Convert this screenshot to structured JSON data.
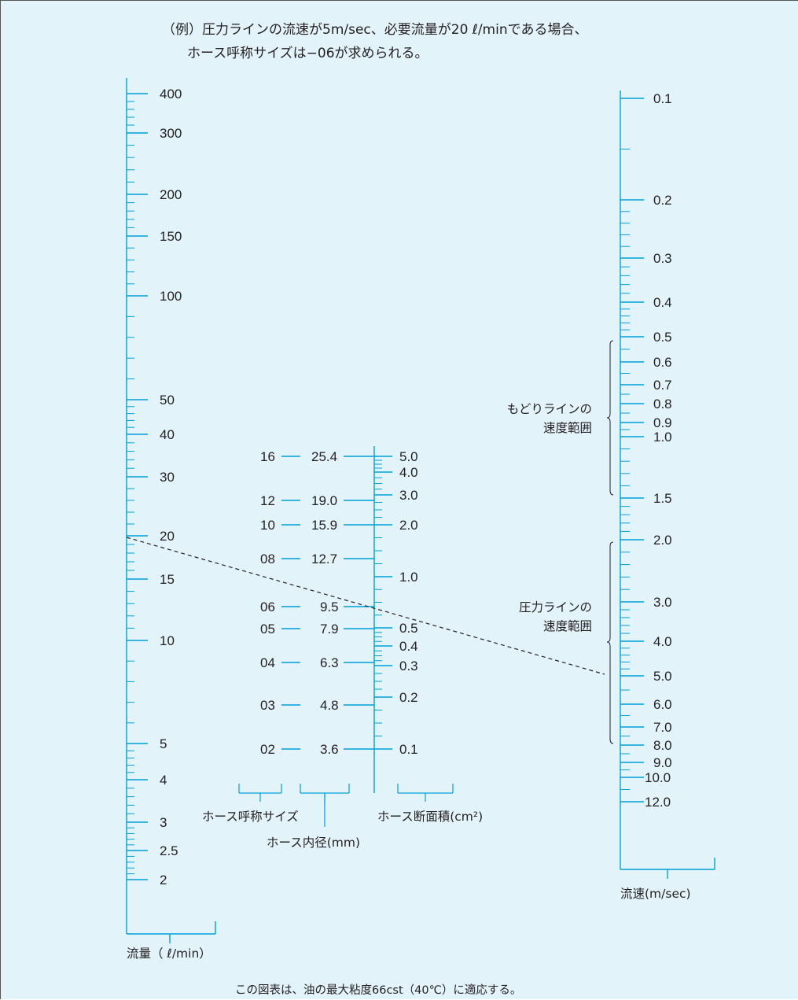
{
  "title": {
    "line1": "（例）圧力ラインの流速が5m/sec、必要流量が20 ℓ/minである場合、",
    "line2": "ホース呼称サイズは−06が求められる。"
  },
  "footnote": "この図表は、油の最大粘度66cst（40℃）に適応する。",
  "colors": {
    "scale": "#00a0d8",
    "background": "#e3f3fa",
    "text": "#231f20",
    "example_line": "#231f20"
  },
  "flow_scale": {
    "caption": "流量（ ℓ/min）",
    "labels": [
      "400",
      "300",
      "200",
      "150",
      "100",
      "50",
      "40",
      "30",
      "20",
      "15",
      "10",
      "5",
      "4",
      "3",
      "2.5",
      "2"
    ]
  },
  "hose_scale": {
    "size_caption": "ホース呼称サイズ",
    "diameter_caption": "ホース内径(mm)",
    "area_caption": "ホース断面積(cm²)",
    "rows": [
      {
        "size": "16",
        "diameter": "25.4"
      },
      {
        "size": "12",
        "diameter": "19.0"
      },
      {
        "size": "10",
        "diameter": "15.9"
      },
      {
        "size": "08",
        "diameter": "12.7"
      },
      {
        "size": "06",
        "diameter": "9.5"
      },
      {
        "size": "05",
        "diameter": "7.9"
      },
      {
        "size": "04",
        "diameter": "6.3"
      },
      {
        "size": "03",
        "diameter": "4.8"
      },
      {
        "size": "02",
        "diameter": "3.6"
      }
    ],
    "area_labels": [
      "5.0",
      "4.0",
      "3.0",
      "2.0",
      "1.0",
      "0.5",
      "0.4",
      "0.3",
      "0.2",
      "0.1"
    ]
  },
  "velocity_scale": {
    "caption": "流速(m/sec)",
    "labels": [
      "0.1",
      "0.2",
      "0.3",
      "0.4",
      "0.5",
      "0.6",
      "0.7",
      "0.8",
      "0.9",
      "1.0",
      "1.5",
      "2.0",
      "3.0",
      "4.0",
      "5.0",
      "6.0",
      "7.0",
      "8.0",
      "9.0",
      "10.0",
      "12.0"
    ],
    "return_range": {
      "line1": "もどりラインの",
      "line2": "速度範囲"
    },
    "pressure_range": {
      "line1": "圧力ラインの",
      "line2": "速度範囲"
    }
  },
  "example": {
    "flow": 20,
    "velocity": 5,
    "result_size": "06"
  }
}
